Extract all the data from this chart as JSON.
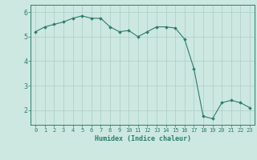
{
  "xlabel": "Humidex (Indice chaleur)",
  "ylabel": "",
  "x": [
    0,
    1,
    2,
    3,
    4,
    5,
    6,
    7,
    8,
    9,
    10,
    11,
    12,
    13,
    14,
    15,
    16,
    17,
    18,
    19,
    20,
    21,
    22,
    23
  ],
  "y": [
    5.2,
    5.4,
    5.5,
    5.6,
    5.75,
    5.85,
    5.75,
    5.75,
    5.4,
    5.2,
    5.25,
    5.0,
    5.2,
    5.4,
    5.4,
    5.35,
    4.9,
    3.7,
    1.75,
    1.65,
    2.3,
    2.4,
    2.3,
    2.1
  ],
  "line_color": "#2e7d6e",
  "marker_color": "#2e7d6e",
  "bg_color": "#cce8e0",
  "grid_color": "#aacec6",
  "tick_color": "#2e7d6e",
  "label_color": "#2e7d6e",
  "spine_color": "#2e7d6e",
  "ylim": [
    1.4,
    6.3
  ],
  "xlim": [
    -0.5,
    23.5
  ],
  "yticks": [
    2,
    3,
    4,
    5,
    6
  ],
  "xticks": [
    0,
    1,
    2,
    3,
    4,
    5,
    6,
    7,
    8,
    9,
    10,
    11,
    12,
    13,
    14,
    15,
    16,
    17,
    18,
    19,
    20,
    21,
    22,
    23
  ],
  "tick_fontsize": 5.0,
  "xlabel_fontsize": 6.0
}
